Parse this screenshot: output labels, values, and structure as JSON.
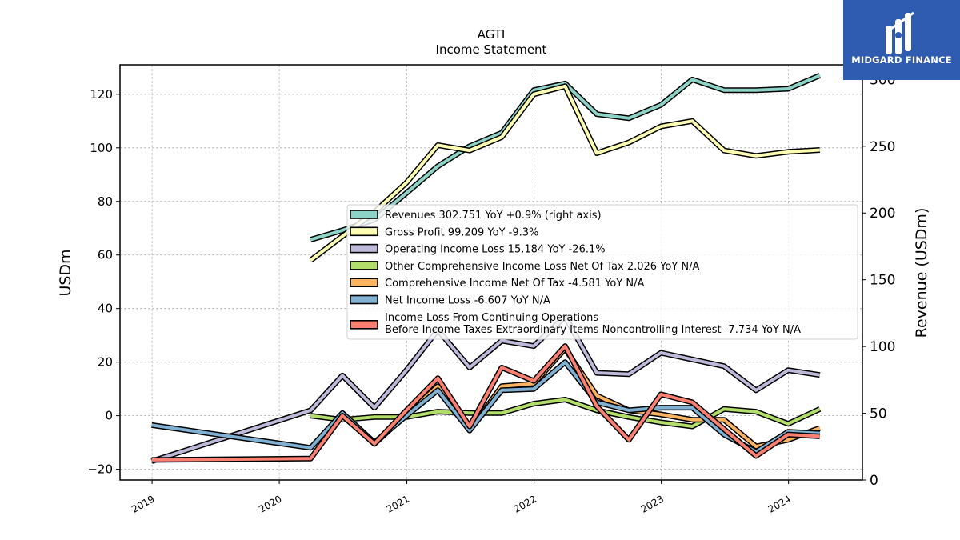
{
  "branding": {
    "name": "MIDGARD FINANCE"
  },
  "chart_data": {
    "type": "line",
    "title": "AGTI",
    "subtitle": "Income Statement",
    "ylabel": "USDm",
    "y2label": "Revenue (USDm)",
    "ylim": [
      -24,
      131
    ],
    "y2lim": [
      0,
      311
    ],
    "yticks": [
      -20,
      0,
      20,
      40,
      60,
      80,
      100,
      120
    ],
    "y2ticks": [
      0,
      50,
      100,
      150,
      200,
      250,
      300
    ],
    "xlim": [
      "2018-10-01",
      "2024-07-31"
    ],
    "xticks": [
      "2019",
      "2020",
      "2021",
      "2022",
      "2023",
      "2024"
    ],
    "grid": true,
    "legend_position": "center-right",
    "series": [
      {
        "name": "Revenues  302.751 YoY +0.9% (right axis)",
        "axis": "right",
        "color": "#8dd3c7",
        "x": [
          "2020-03-31",
          "2020-06-30",
          "2020-09-30",
          "2020-12-31",
          "2021-03-31",
          "2021-06-30",
          "2021-09-30",
          "2021-12-31",
          "2022-03-31",
          "2022-06-30",
          "2022-09-30",
          "2022-12-31",
          "2023-03-31",
          "2023-06-30",
          "2023-09-30",
          "2023-12-31",
          "2024-03-31"
        ],
        "values": [
          180,
          187,
          195,
          215,
          235,
          250,
          260,
          292,
          297,
          274,
          271,
          281,
          300,
          292,
          292,
          293,
          303
        ]
      },
      {
        "name": "Gross Profit  99.209 YoY -9.3%",
        "axis": "left",
        "color": "#ffffb3",
        "x": [
          "2020-03-31",
          "2020-06-30",
          "2020-09-30",
          "2020-12-31",
          "2021-03-31",
          "2021-06-30",
          "2021-09-30",
          "2021-12-31",
          "2022-03-31",
          "2022-06-30",
          "2022-09-30",
          "2022-12-31",
          "2023-03-31",
          "2023-06-30",
          "2023-09-30",
          "2023-12-31",
          "2024-03-31"
        ],
        "values": [
          58,
          67,
          76,
          87,
          101,
          99,
          104,
          120,
          123,
          98,
          102,
          108,
          110,
          99,
          97,
          98.5,
          99.2
        ]
      },
      {
        "name": "Operating Income Loss  15.184 YoY -26.1%",
        "axis": "left",
        "color": "#bebada",
        "x": [
          "2018-12-31",
          "2020-03-31",
          "2020-06-30",
          "2020-09-30",
          "2020-12-31",
          "2021-03-31",
          "2021-06-30",
          "2021-09-30",
          "2021-12-31",
          "2022-03-31",
          "2022-06-30",
          "2022-09-30",
          "2022-12-31",
          "2023-03-31",
          "2023-06-30",
          "2023-09-30",
          "2023-12-31",
          "2024-03-31"
        ],
        "values": [
          -17,
          2,
          15,
          3,
          17,
          32,
          18,
          28,
          26,
          37,
          16,
          15.5,
          23.5,
          21,
          18.5,
          9.5,
          17,
          15.2
        ]
      },
      {
        "name": "Other Comprehensive Income Loss Net Of Tax  2.026 YoY N/A",
        "axis": "left",
        "color": "#b3de69",
        "x": [
          "2020-03-31",
          "2020-06-30",
          "2020-09-30",
          "2020-12-31",
          "2021-03-31",
          "2021-06-30",
          "2021-09-30",
          "2021-12-31",
          "2022-03-31",
          "2022-06-30",
          "2022-09-30",
          "2022-12-31",
          "2023-03-31",
          "2023-06-30",
          "2023-09-30",
          "2023-12-31",
          "2024-03-31"
        ],
        "values": [
          0,
          -1.5,
          -0.5,
          -0.5,
          1.5,
          1,
          1,
          4.5,
          6,
          2,
          -0.5,
          -2.5,
          -4,
          2.5,
          1.5,
          -3,
          2.5
        ]
      },
      {
        "name": "Comprehensive Income Net Of Tax  -4.581 YoY N/A",
        "axis": "left",
        "color": "#fdb462",
        "x": [
          "2020-06-30",
          "2020-09-30",
          "2020-12-31",
          "2021-03-31",
          "2021-06-30",
          "2021-09-30",
          "2021-12-31",
          "2022-03-31",
          "2022-06-30",
          "2022-09-30",
          "2022-12-31",
          "2023-03-31",
          "2023-06-30",
          "2023-09-30",
          "2023-12-31",
          "2024-03-31"
        ],
        "values": [
          1,
          -10.5,
          0.5,
          11,
          -5.5,
          11,
          12,
          25,
          7.5,
          2,
          0.5,
          -1.5,
          -1.5,
          -11.5,
          -9,
          -4.6
        ]
      },
      {
        "name": "Net Income Loss  -6.607 YoY N/A",
        "axis": "left",
        "color": "#80b1d3",
        "x": [
          "2018-12-31",
          "2020-03-31",
          "2020-06-30",
          "2020-09-30",
          "2020-12-31",
          "2021-03-31",
          "2021-06-30",
          "2021-09-30",
          "2021-12-31",
          "2022-03-31",
          "2022-06-30",
          "2022-09-30",
          "2022-12-31",
          "2023-03-31",
          "2023-06-30",
          "2023-09-30",
          "2023-12-31",
          "2024-03-31"
        ],
        "values": [
          -3.5,
          -12,
          1,
          -10,
          0,
          9.5,
          -5.5,
          9.5,
          10,
          20,
          5,
          2,
          3,
          3,
          -7,
          -13.5,
          -6,
          -6.6
        ]
      },
      {
        "name": "Income Loss From Continuing Operations\nBefore Income Taxes Extraordinary Items Noncontrolling Interest  -7.734 YoY N/A",
        "axis": "left",
        "color": "#fb8072",
        "x": [
          "2018-12-31",
          "2020-03-31",
          "2020-06-30",
          "2020-09-30",
          "2020-12-31",
          "2021-03-31",
          "2021-06-30",
          "2021-09-30",
          "2021-12-31",
          "2022-03-31",
          "2022-06-30",
          "2022-09-30",
          "2022-12-31",
          "2023-03-31",
          "2023-06-30",
          "2023-09-30",
          "2023-12-31",
          "2024-03-31"
        ],
        "values": [
          -16.5,
          -16,
          0,
          -10.5,
          2,
          14,
          -4,
          18,
          13,
          26,
          3.5,
          -9,
          8,
          5,
          -5,
          -15,
          -7,
          -7.7
        ]
      }
    ]
  }
}
